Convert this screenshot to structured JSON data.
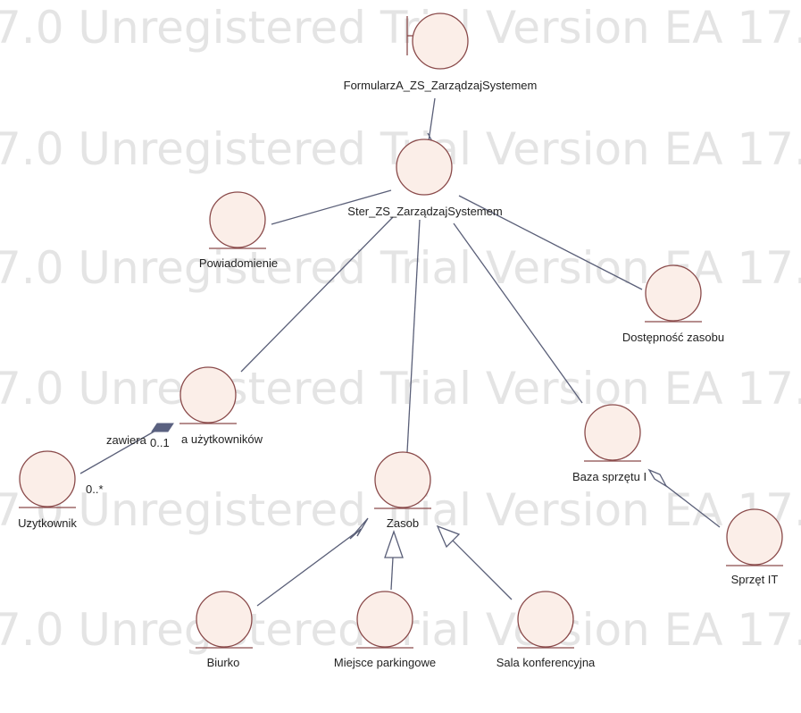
{
  "watermark": {
    "text": "7.0 Unregistered Trial Version EA 17.0 U"
  },
  "nodes": {
    "formularz": "FormularzA_ZS_ZarządzajSystemem",
    "ster": "Ster_ZS_ZarządzajSystemem",
    "powiadomienie": "Powiadomienie",
    "dostepnosc": "Dostępność zasobu",
    "lista": "a użytkowników",
    "uzytkownik": "Uzytkownik",
    "zasob": "Zasob",
    "baza": "Baza sprzętu I",
    "sprzet": "Sprzęt IT",
    "biurko": "Biurko",
    "miejsce": "Miejsce parkingowe",
    "sala": "Sala konferencyjna"
  },
  "edge_labels": {
    "zawiera": "zawiera",
    "mult_one": "0..1",
    "mult_many": "0..*"
  },
  "colors": {
    "node_fill": "#fbeee8",
    "node_stroke": "#8a4a4a",
    "edge": "#5a5f78",
    "watermark": "#e4e4e4"
  }
}
